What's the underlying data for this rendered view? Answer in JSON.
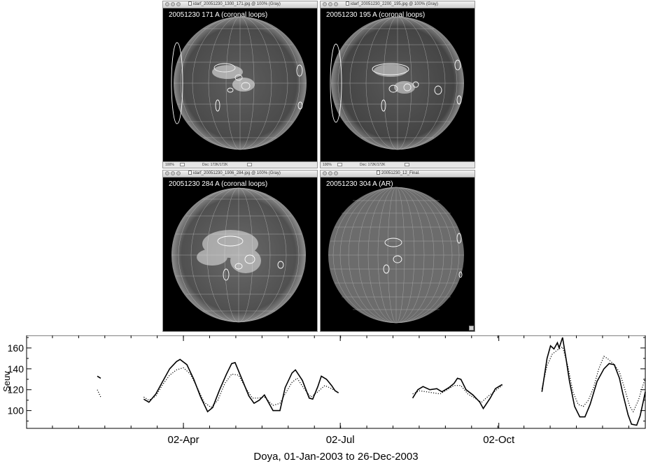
{
  "windows": [
    {
      "title": "idarf_20051230_1300_171.jpg @ 100% (Gray)",
      "label": "20051230 171 A (coronal loops)",
      "zoom": "100%",
      "pixels": "Doc: 172K/172K"
    },
    {
      "title": "idarf_20051230_2200_195.jpg @ 100% (Gray)",
      "label": "20051230 195 A (coronal loops)",
      "zoom": "100%",
      "pixels": "Doc: 172K/172K"
    },
    {
      "title": "idarf_20051230_1906_284.jpg @ 100% (Gray)",
      "label": "20051230 284 A (coronal loops)"
    },
    {
      "title": "20051230_12_Final.",
      "label": "20051230 304 A (AR)"
    }
  ],
  "chart_data": {
    "type": "line",
    "ylabel": "Seuv",
    "xlabel": "Doya, 01-Jan-2003 to 26-Dec-2003",
    "xlim": [
      1,
      360
    ],
    "ylim": [
      83,
      172
    ],
    "yticks": [
      100,
      120,
      140,
      160
    ],
    "xticks": [
      {
        "day": 92,
        "label": "02-Apr"
      },
      {
        "day": 183,
        "label": "02-Jul"
      },
      {
        "day": 275,
        "label": "02-Oct"
      }
    ],
    "grid": false,
    "series": [
      {
        "style": "solid",
        "points": [
          [
            42,
            133
          ],
          [
            44,
            131
          ],
          [
            69,
            111
          ],
          [
            72,
            108
          ],
          [
            76,
            116
          ],
          [
            80,
            128
          ],
          [
            84,
            140
          ],
          [
            88,
            147
          ],
          [
            90,
            149
          ],
          [
            94,
            144
          ],
          [
            98,
            130
          ],
          [
            102,
            113
          ],
          [
            106,
            99
          ],
          [
            109,
            103
          ],
          [
            113,
            120
          ],
          [
            117,
            135
          ],
          [
            120,
            145
          ],
          [
            122,
            146
          ],
          [
            126,
            130
          ],
          [
            130,
            114
          ],
          [
            133,
            107
          ],
          [
            136,
            110
          ],
          [
            139,
            115
          ],
          [
            144,
            100
          ],
          [
            148,
            100
          ],
          [
            151,
            122
          ],
          [
            155,
            136
          ],
          [
            157,
            139
          ],
          [
            161,
            129
          ],
          [
            165,
            112
          ],
          [
            167,
            111
          ],
          [
            170,
            123
          ],
          [
            172,
            133
          ],
          [
            175,
            130
          ],
          [
            178,
            124
          ],
          [
            180,
            119
          ],
          [
            182,
            117
          ],
          [
            225,
            112
          ],
          [
            228,
            120
          ],
          [
            231,
            123
          ],
          [
            235,
            120
          ],
          [
            239,
            121
          ],
          [
            242,
            118
          ],
          [
            246,
            122
          ],
          [
            249,
            126
          ],
          [
            251,
            131
          ],
          [
            253,
            130
          ],
          [
            256,
            120
          ],
          [
            260,
            115
          ],
          [
            264,
            108
          ],
          [
            266,
            102
          ],
          [
            270,
            112
          ],
          [
            273,
            121
          ],
          [
            277,
            125
          ],
          [
            300,
            118
          ],
          [
            303,
            150
          ],
          [
            305,
            162
          ],
          [
            307,
            159
          ],
          [
            309,
            165
          ],
          [
            310,
            160
          ],
          [
            312,
            170
          ],
          [
            314,
            150
          ],
          [
            316,
            128
          ],
          [
            319,
            104
          ],
          [
            322,
            94
          ],
          [
            325,
            94
          ],
          [
            328,
            106
          ],
          [
            332,
            128
          ],
          [
            336,
            140
          ],
          [
            339,
            145
          ],
          [
            342,
            144
          ],
          [
            345,
            131
          ],
          [
            347,
            116
          ],
          [
            350,
            96
          ],
          [
            352,
            87
          ],
          [
            355,
            86
          ],
          [
            357,
            95
          ],
          [
            359,
            110
          ],
          [
            360,
            118
          ]
        ]
      },
      {
        "style": "dotted",
        "points": [
          [
            42,
            120
          ],
          [
            44,
            113
          ],
          [
            69,
            113
          ],
          [
            72,
            110
          ],
          [
            76,
            114
          ],
          [
            80,
            125
          ],
          [
            84,
            134
          ],
          [
            88,
            139
          ],
          [
            92,
            141
          ],
          [
            96,
            135
          ],
          [
            100,
            122
          ],
          [
            104,
            108
          ],
          [
            108,
            103
          ],
          [
            112,
            110
          ],
          [
            116,
            126
          ],
          [
            120,
            135
          ],
          [
            124,
            134
          ],
          [
            128,
            122
          ],
          [
            132,
            112
          ],
          [
            135,
            112
          ],
          [
            139,
            113
          ],
          [
            144,
            105
          ],
          [
            148,
            107
          ],
          [
            151,
            116
          ],
          [
            155,
            127
          ],
          [
            158,
            131
          ],
          [
            162,
            121
          ],
          [
            166,
            113
          ],
          [
            170,
            118
          ],
          [
            174,
            124
          ],
          [
            178,
            121
          ],
          [
            182,
            117
          ],
          [
            225,
            116
          ],
          [
            229,
            119
          ],
          [
            233,
            118
          ],
          [
            237,
            117
          ],
          [
            241,
            116
          ],
          [
            245,
            120
          ],
          [
            249,
            124
          ],
          [
            253,
            124
          ],
          [
            257,
            116
          ],
          [
            261,
            112
          ],
          [
            265,
            108
          ],
          [
            269,
            114
          ],
          [
            273,
            119
          ],
          [
            277,
            124
          ],
          [
            300,
            121
          ],
          [
            303,
            143
          ],
          [
            306,
            154
          ],
          [
            309,
            158
          ],
          [
            312,
            161
          ],
          [
            315,
            143
          ],
          [
            318,
            118
          ],
          [
            321,
            106
          ],
          [
            324,
            104
          ],
          [
            327,
            110
          ],
          [
            330,
            122
          ],
          [
            333,
            140
          ],
          [
            336,
            152
          ],
          [
            338,
            150
          ],
          [
            342,
            144
          ],
          [
            345,
            137
          ],
          [
            348,
            121
          ],
          [
            351,
            104
          ],
          [
            353,
            99
          ],
          [
            356,
            110
          ],
          [
            358,
            121
          ],
          [
            360,
            131
          ]
        ]
      }
    ]
  }
}
